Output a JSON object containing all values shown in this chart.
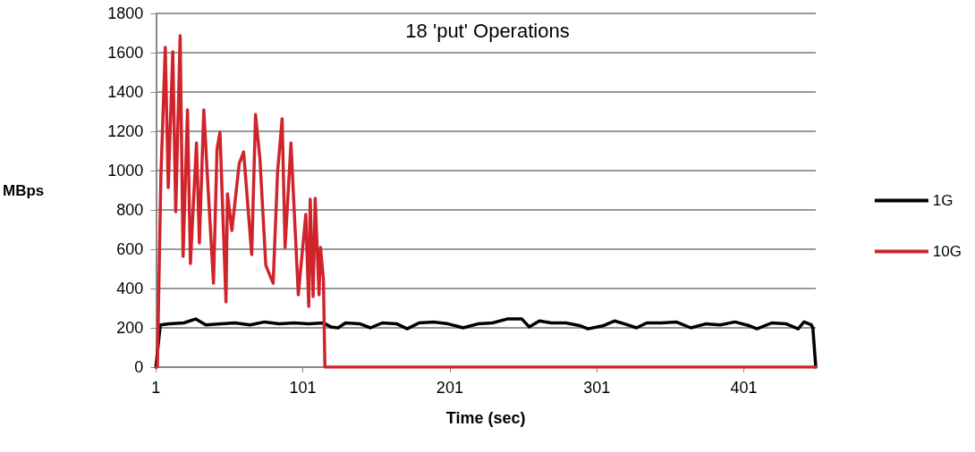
{
  "chart_data": {
    "type": "line",
    "title": "18 'put' Operations",
    "xlabel": "Time (sec)",
    "ylabel": "MBps",
    "xlim": [
      1,
      450
    ],
    "xticks": [
      1,
      101,
      201,
      301,
      401
    ],
    "ylim": [
      0,
      1800
    ],
    "yticks": [
      0,
      200,
      400,
      600,
      800,
      1000,
      1200,
      1400,
      1600,
      1800
    ],
    "grid": "y",
    "legend": "right",
    "marker": "none",
    "line_style": "solid",
    "series": [
      {
        "name": "1G",
        "color": "#000000",
        "x": [
          1,
          4,
          10,
          20,
          28,
          35,
          45,
          55,
          65,
          75,
          85,
          95,
          105,
          115,
          120,
          125,
          130,
          140,
          147,
          155,
          165,
          172,
          180,
          190,
          200,
          210,
          220,
          230,
          240,
          250,
          255,
          262,
          270,
          280,
          290,
          295,
          305,
          313,
          320,
          328,
          335,
          345,
          355,
          365,
          375,
          385,
          395,
          405,
          410,
          420,
          430,
          438,
          442,
          447,
          448,
          450
        ],
        "values": [
          0,
          215,
          220,
          225,
          245,
          215,
          220,
          225,
          215,
          230,
          220,
          225,
          220,
          225,
          205,
          200,
          225,
          220,
          200,
          225,
          220,
          195,
          225,
          230,
          220,
          200,
          220,
          225,
          245,
          245,
          205,
          235,
          225,
          225,
          210,
          195,
          210,
          235,
          220,
          200,
          225,
          225,
          230,
          200,
          220,
          215,
          230,
          210,
          195,
          225,
          220,
          195,
          230,
          215,
          200,
          0
        ]
      },
      {
        "name": "10G",
        "color": "#d0232a",
        "x": [
          1,
          2,
          4.4,
          7.4,
          9.4,
          12.5,
          14.5,
          17.5,
          19.5,
          22.5,
          24.5,
          28.6,
          30.6,
          33.6,
          36.6,
          40.2,
          42.6,
          44.6,
          48.7,
          49.7,
          52.7,
          57.7,
          60.7,
          66.2,
          68.8,
          71.8,
          75.8,
          80.8,
          83.8,
          86.9,
          88.9,
          92.9,
          97.9,
          103,
          105,
          106,
          108,
          109.4,
          112,
          113,
          115,
          116,
          450
        ],
        "values": [
          0,
          0,
          968,
          1627,
          914,
          1605,
          791,
          1686,
          564,
          1309,
          527,
          1141,
          632,
          1309,
          900,
          427,
          1109,
          1195,
          332,
          882,
          695,
          1036,
          1095,
          573,
          1286,
          1059,
          518,
          427,
          995,
          1264,
          609,
          1141,
          368,
          777,
          309,
          855,
          359,
          859,
          368,
          609,
          445,
          0,
          0
        ]
      }
    ]
  }
}
